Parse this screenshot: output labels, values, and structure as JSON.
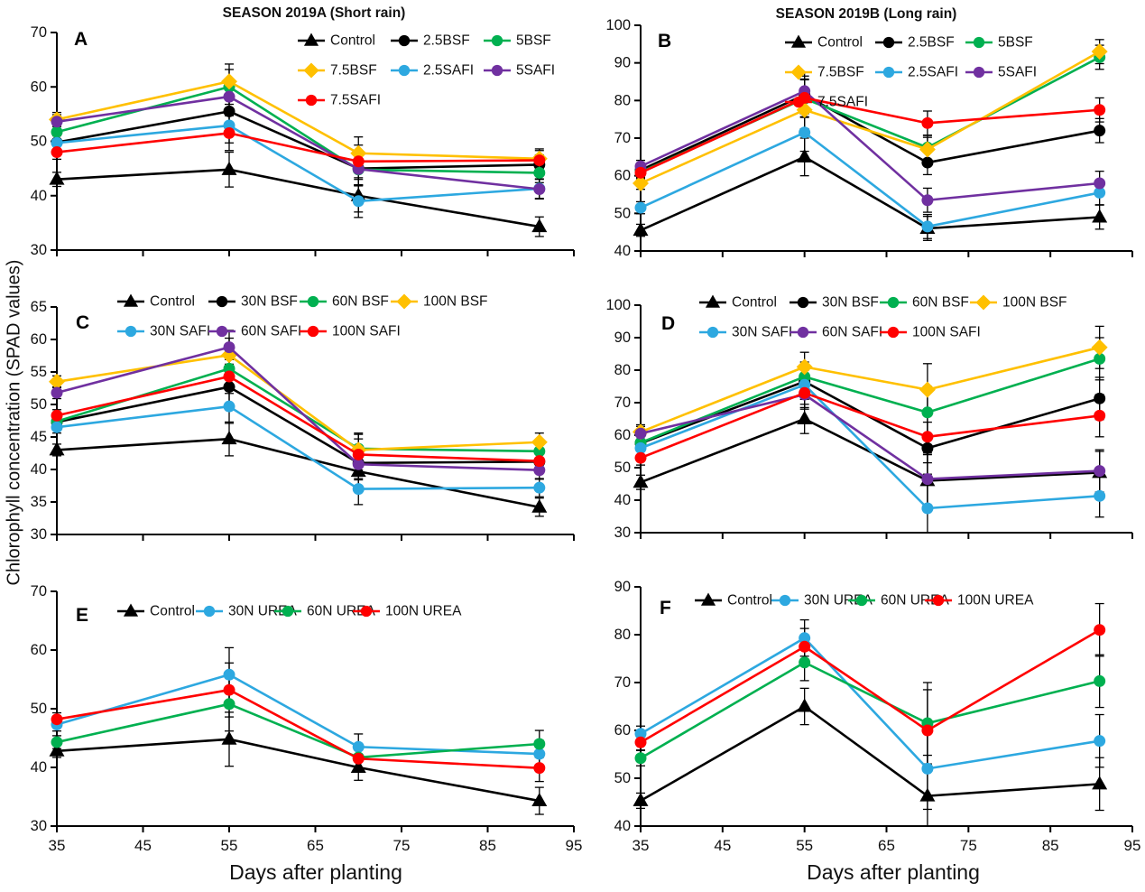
{
  "figure": {
    "ylabel": "Chlorophyll concentration (SPAD values)",
    "xlabel": "Days after planting"
  },
  "chart_data": [
    {
      "panel": "A",
      "title": "SEASON 2019A (Short rain)",
      "type": "line",
      "x": [
        35,
        55,
        70,
        91
      ],
      "xlim": [
        35,
        95
      ],
      "xticks": [
        35,
        45,
        55,
        65,
        75,
        85,
        95
      ],
      "x_tick_labels": false,
      "ylim": [
        30,
        70
      ],
      "yticks": [
        30,
        40,
        50,
        60,
        70
      ],
      "err_est": [
        1.3,
        3.2,
        3.0,
        1.8
      ],
      "series": [
        {
          "name": "Control",
          "color": "#000000",
          "marker": "triangle",
          "values": [
            43.0,
            44.8,
            40.0,
            34.3
          ]
        },
        {
          "name": "2.5BSF",
          "color": "#000000",
          "marker": "circle",
          "values": [
            49.8,
            55.5,
            45.0,
            45.7
          ]
        },
        {
          "name": "5BSF",
          "color": "#00B050",
          "marker": "circle",
          "values": [
            51.7,
            60.0,
            44.8,
            44.2
          ]
        },
        {
          "name": "7.5BSF",
          "color": "#FFC000",
          "marker": "diamond",
          "values": [
            54.0,
            61.0,
            47.8,
            46.8
          ]
        },
        {
          "name": "2.5SAFI",
          "color": "#2DA8E0",
          "marker": "circle",
          "values": [
            49.7,
            52.9,
            39.0,
            41.3
          ]
        },
        {
          "name": "5SAFI",
          "color": "#7030A0",
          "marker": "circle",
          "values": [
            53.6,
            58.2,
            44.9,
            41.2
          ]
        },
        {
          "name": "7.5SAFI",
          "color": "#FF0000",
          "marker": "circle",
          "values": [
            48.0,
            51.5,
            46.3,
            46.5
          ]
        }
      ]
    },
    {
      "panel": "B",
      "title": "SEASON 2019B (Long rain)",
      "type": "line",
      "x": [
        35,
        55,
        70,
        91
      ],
      "xlim": [
        35,
        95
      ],
      "xticks": [
        35,
        45,
        55,
        65,
        75,
        85,
        95
      ],
      "x_tick_labels": false,
      "ylim": [
        40,
        100
      ],
      "yticks": [
        40,
        50,
        60,
        70,
        80,
        90,
        100
      ],
      "err_est": [
        1.6,
        5.0,
        3.2,
        3.2
      ],
      "series": [
        {
          "name": "Control",
          "color": "#000000",
          "marker": "triangle",
          "values": [
            45.5,
            65.0,
            46.0,
            49.0
          ]
        },
        {
          "name": "2.5BSF",
          "color": "#000000",
          "marker": "circle",
          "values": [
            61.5,
            81.5,
            63.5,
            72.0
          ]
        },
        {
          "name": "5BSF",
          "color": "#00B050",
          "marker": "circle",
          "values": [
            61.0,
            80.5,
            67.5,
            91.5
          ]
        },
        {
          "name": "7.5BSF",
          "color": "#FFC000",
          "marker": "diamond",
          "values": [
            58.0,
            77.5,
            67.0,
            93.0
          ]
        },
        {
          "name": "2.5SAFI",
          "color": "#2DA8E0",
          "marker": "circle",
          "values": [
            51.5,
            71.5,
            46.5,
            55.5
          ]
        },
        {
          "name": "5SAFI",
          "color": "#7030A0",
          "marker": "circle",
          "values": [
            62.5,
            82.5,
            53.5,
            58.0
          ]
        },
        {
          "name": "7.5SAFI",
          "color": "#FF0000",
          "marker": "circle",
          "values": [
            60.8,
            80.7,
            74.0,
            77.5
          ]
        }
      ]
    },
    {
      "panel": "C",
      "title": "",
      "type": "line",
      "x": [
        35,
        55,
        70,
        91
      ],
      "xlim": [
        35,
        95
      ],
      "xticks": [
        35,
        45,
        55,
        65,
        75,
        85,
        95
      ],
      "x_tick_labels": false,
      "ylim": [
        30,
        65
      ],
      "yticks": [
        30,
        35,
        40,
        45,
        50,
        55,
        60,
        65
      ],
      "err_est": [
        0.9,
        2.6,
        2.4,
        1.4
      ],
      "series": [
        {
          "name": "Control",
          "color": "#000000",
          "marker": "triangle",
          "values": [
            43.0,
            44.7,
            39.7,
            34.2
          ]
        },
        {
          "name": "30N BSF",
          "color": "#000000",
          "marker": "circle",
          "values": [
            47.3,
            52.7,
            41.0,
            41.2
          ]
        },
        {
          "name": "60N BSF",
          "color": "#00B050",
          "marker": "circle",
          "values": [
            47.4,
            55.5,
            43.2,
            42.8
          ]
        },
        {
          "name": "100N BSF",
          "color": "#FFC000",
          "marker": "diamond",
          "values": [
            53.5,
            57.6,
            43.0,
            44.2
          ]
        },
        {
          "name": "30N SAFI",
          "color": "#2DA8E0",
          "marker": "circle",
          "values": [
            46.5,
            49.7,
            37.0,
            37.2
          ]
        },
        {
          "name": "60N SAFI",
          "color": "#7030A0",
          "marker": "circle",
          "values": [
            51.8,
            58.8,
            40.8,
            39.9
          ]
        },
        {
          "name": "100N SAFI",
          "color": "#FF0000",
          "marker": "circle",
          "values": [
            48.3,
            54.3,
            42.3,
            41.3
          ]
        }
      ]
    },
    {
      "panel": "D",
      "title": "",
      "type": "line",
      "x": [
        35,
        55,
        70,
        91
      ],
      "xlim": [
        35,
        95
      ],
      "xticks": [
        35,
        45,
        55,
        65,
        75,
        85,
        95
      ],
      "x_tick_labels": false,
      "ylim": [
        30,
        100
      ],
      "yticks": [
        30,
        40,
        50,
        60,
        70,
        80,
        90,
        100
      ],
      "err_est": [
        2.2,
        4.5,
        8.0,
        6.5
      ],
      "series": [
        {
          "name": "Control",
          "color": "#000000",
          "marker": "triangle",
          "values": [
            45.5,
            65.0,
            46.0,
            48.5
          ]
        },
        {
          "name": "30N BSF",
          "color": "#000000",
          "marker": "circle",
          "values": [
            57.5,
            76.5,
            56.0,
            71.3
          ]
        },
        {
          "name": "60N BSF",
          "color": "#00B050",
          "marker": "circle",
          "values": [
            57.7,
            78.0,
            67.0,
            83.5
          ]
        },
        {
          "name": "100N BSF",
          "color": "#FFC000",
          "marker": "diamond",
          "values": [
            61.0,
            81.0,
            74.0,
            87.0
          ]
        },
        {
          "name": "30N SAFI",
          "color": "#2DA8E0",
          "marker": "circle",
          "values": [
            56.0,
            75.5,
            37.5,
            41.3
          ]
        },
        {
          "name": "60N SAFI",
          "color": "#7030A0",
          "marker": "circle",
          "values": [
            60.5,
            72.5,
            46.5,
            49.0
          ]
        },
        {
          "name": "100N SAFI",
          "color": "#FF0000",
          "marker": "circle",
          "values": [
            53.0,
            73.0,
            59.5,
            66.0
          ]
        }
      ]
    },
    {
      "panel": "E",
      "title": "",
      "type": "line",
      "x": [
        35,
        55,
        70,
        91
      ],
      "xlim": [
        35,
        95
      ],
      "xticks": [
        35,
        45,
        55,
        65,
        75,
        85,
        95
      ],
      "x_tick_labels": true,
      "ylim": [
        30,
        70
      ],
      "yticks": [
        30,
        40,
        50,
        60,
        70
      ],
      "err_est": [
        1.1,
        4.6,
        2.2,
        2.3
      ],
      "series": [
        {
          "name": "Control",
          "color": "#000000",
          "marker": "triangle",
          "values": [
            42.8,
            44.8,
            40.0,
            34.3
          ]
        },
        {
          "name": "30N UREA",
          "color": "#2DA8E0",
          "marker": "circle",
          "values": [
            47.3,
            55.8,
            43.5,
            42.3
          ]
        },
        {
          "name": "60N UREA",
          "color": "#00B050",
          "marker": "circle",
          "values": [
            44.3,
            50.8,
            41.7,
            44.0
          ]
        },
        {
          "name": "100N UREA",
          "color": "#FF0000",
          "marker": "circle",
          "values": [
            48.2,
            53.2,
            41.5,
            39.9
          ]
        }
      ]
    },
    {
      "panel": "F",
      "title": "",
      "type": "line",
      "x": [
        35,
        55,
        70,
        91
      ],
      "xlim": [
        35,
        95
      ],
      "xticks": [
        35,
        45,
        55,
        65,
        75,
        85,
        95
      ],
      "x_tick_labels": true,
      "ylim": [
        40,
        90
      ],
      "yticks": [
        40,
        50,
        60,
        70,
        80,
        90
      ],
      "err_est": [
        1.6,
        3.8,
        8.5,
        5.5
      ],
      "series": [
        {
          "name": "Control",
          "color": "#000000",
          "marker": "triangle",
          "values": [
            45.3,
            65.0,
            46.3,
            48.8
          ]
        },
        {
          "name": "30N UREA",
          "color": "#2DA8E0",
          "marker": "circle",
          "values": [
            59.3,
            79.3,
            52.0,
            57.8
          ]
        },
        {
          "name": "60N UREA",
          "color": "#00B050",
          "marker": "circle",
          "values": [
            54.2,
            74.2,
            61.5,
            70.3
          ]
        },
        {
          "name": "100N UREA",
          "color": "#FF0000",
          "marker": "circle",
          "values": [
            57.5,
            77.5,
            60.0,
            81.0
          ]
        }
      ]
    }
  ]
}
